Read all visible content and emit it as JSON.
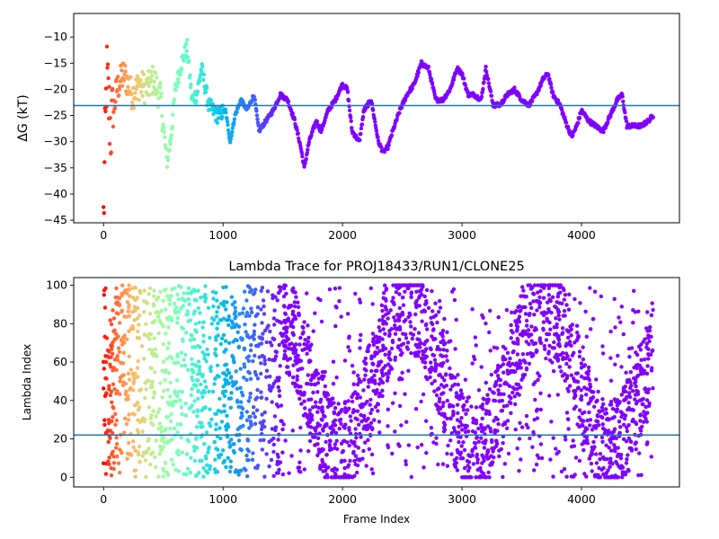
{
  "chart_data": [
    {
      "type": "scatter",
      "title": "",
      "xlabel": "",
      "ylabel": "ΔG (kT)",
      "xlim": [
        -250,
        4820
      ],
      "ylim": [
        -45.5,
        -5.5
      ],
      "xticks": [
        0,
        1000,
        2000,
        3000,
        4000
      ],
      "yticks": [
        -45,
        -40,
        -35,
        -30,
        -25,
        -20,
        -15,
        -10
      ],
      "hline": -23.1,
      "hline_color": "#1f77b4",
      "colormap": "rainbow (reversed along frame index)",
      "grid": false,
      "legend": "none",
      "frames": [
        4600
      ],
      "anchors": [
        [
          0,
          -45
        ],
        [
          25,
          -17
        ],
        [
          60,
          -28
        ],
        [
          110,
          -20
        ],
        [
          170,
          -17
        ],
        [
          240,
          -21
        ],
        [
          300,
          -19
        ],
        [
          360,
          -20
        ],
        [
          420,
          -18
        ],
        [
          480,
          -22
        ],
        [
          530,
          -34
        ],
        [
          560,
          -30
        ],
        [
          600,
          -20
        ],
        [
          650,
          -15
        ],
        [
          700,
          -12
        ],
        [
          740,
          -22
        ],
        [
          780,
          -21
        ],
        [
          820,
          -16
        ],
        [
          880,
          -23
        ],
        [
          950,
          -25
        ],
        [
          1020,
          -24
        ],
        [
          1060,
          -30
        ],
        [
          1100,
          -25
        ],
        [
          1150,
          -22
        ],
        [
          1200,
          -24
        ],
        [
          1260,
          -21
        ],
        [
          1300,
          -28
        ],
        [
          1360,
          -26
        ],
        [
          1420,
          -24
        ],
        [
          1480,
          -21
        ],
        [
          1540,
          -22
        ],
        [
          1600,
          -26
        ],
        [
          1650,
          -31
        ],
        [
          1680,
          -35
        ],
        [
          1720,
          -30
        ],
        [
          1780,
          -26
        ],
        [
          1820,
          -28
        ],
        [
          1880,
          -24
        ],
        [
          1940,
          -22
        ],
        [
          2000,
          -19
        ],
        [
          2040,
          -20
        ],
        [
          2080,
          -28
        ],
        [
          2140,
          -30
        ],
        [
          2180,
          -24
        ],
        [
          2240,
          -22
        ],
        [
          2300,
          -30
        ],
        [
          2340,
          -32
        ],
        [
          2380,
          -31
        ],
        [
          2420,
          -28
        ],
        [
          2480,
          -24
        ],
        [
          2540,
          -21
        ],
        [
          2600,
          -19
        ],
        [
          2660,
          -15
        ],
        [
          2720,
          -16
        ],
        [
          2780,
          -22
        ],
        [
          2840,
          -22
        ],
        [
          2900,
          -20
        ],
        [
          2960,
          -16
        ],
        [
          3000,
          -17
        ],
        [
          3050,
          -21
        ],
        [
          3100,
          -21
        ],
        [
          3160,
          -22
        ],
        [
          3200,
          -16
        ],
        [
          3260,
          -23
        ],
        [
          3320,
          -23
        ],
        [
          3380,
          -21
        ],
        [
          3440,
          -20
        ],
        [
          3500,
          -22
        ],
        [
          3560,
          -23
        ],
        [
          3620,
          -21
        ],
        [
          3680,
          -18
        ],
        [
          3720,
          -17
        ],
        [
          3760,
          -21
        ],
        [
          3820,
          -23
        ],
        [
          3880,
          -27
        ],
        [
          3920,
          -29
        ],
        [
          3960,
          -27
        ],
        [
          4000,
          -24
        ],
        [
          4060,
          -26
        ],
        [
          4120,
          -27
        ],
        [
          4180,
          -28
        ],
        [
          4240,
          -25
        ],
        [
          4300,
          -22
        ],
        [
          4340,
          -21
        ],
        [
          4380,
          -27
        ],
        [
          4440,
          -27
        ],
        [
          4500,
          -27
        ],
        [
          4560,
          -26
        ],
        [
          4600,
          -25
        ]
      ]
    },
    {
      "type": "scatter",
      "title": "Lambda Trace for PROJ18433/RUN1/CLONE25",
      "xlabel": "Frame Index",
      "ylabel": "Lambda Index",
      "xlim": [
        -250,
        4820
      ],
      "ylim": [
        -5,
        104
      ],
      "xticks": [
        0,
        1000,
        2000,
        3000,
        4000
      ],
      "yticks": [
        0,
        20,
        40,
        60,
        80,
        100
      ],
      "hline": 22,
      "hline_color": "#1f77b4",
      "colormap": "rainbow (reversed along frame index)",
      "grid": false,
      "legend": "none",
      "frames": [
        4600
      ],
      "point_count": 3000
    }
  ],
  "axes": {
    "top": {
      "ylabel": "ΔG (kT)"
    },
    "bottom": {
      "title": "Lambda Trace for PROJ18433/RUN1/CLONE25",
      "xlabel": "Frame Index",
      "ylabel": "Lambda Index"
    }
  }
}
